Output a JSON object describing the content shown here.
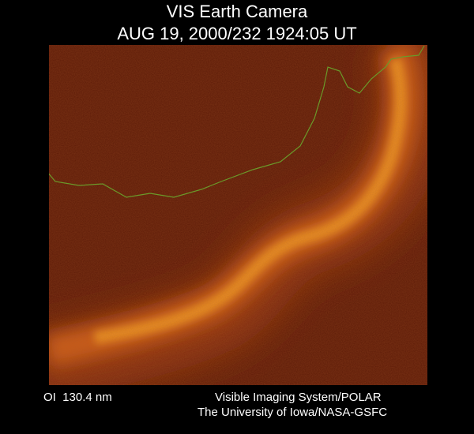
{
  "header": {
    "title": "VIS Earth Camera",
    "subtitle": "AUG 19, 2000/232 1924:05 UT"
  },
  "footer": {
    "filter": "OI  130.4 nm",
    "credit": [
      "Visible Imaging System/POLAR",
      "The University of Iowa/NASA-GSFC"
    ]
  }
}
